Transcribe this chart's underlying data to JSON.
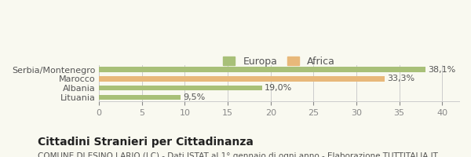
{
  "categories": [
    "Serbia/Montenegro",
    "Marocco",
    "Albania",
    "Lituania"
  ],
  "values": [
    38.1,
    33.3,
    19.0,
    9.5
  ],
  "colors": [
    "#a8c078",
    "#e8b87a",
    "#a8c078",
    "#a8c078"
  ],
  "legend_labels": [
    "Europa",
    "Africa"
  ],
  "legend_colors": [
    "#a8c078",
    "#e8b87a"
  ],
  "value_labels": [
    "38,1%",
    "33,3%",
    "19,0%",
    "9,5%"
  ],
  "xlim": [
    0,
    42
  ],
  "xticks": [
    0,
    5,
    10,
    15,
    20,
    25,
    30,
    35,
    40
  ],
  "title": "Cittadini Stranieri per Cittadinanza",
  "subtitle": "COMUNE DI ESINO LARIO (LC) - Dati ISTAT al 1° gennaio di ogni anno - Elaborazione TUTTITALIA.IT",
  "bg_color": "#f9f9f0",
  "bar_height": 0.55,
  "title_fontsize": 10,
  "subtitle_fontsize": 7.5,
  "label_fontsize": 8,
  "tick_fontsize": 8,
  "legend_fontsize": 9
}
